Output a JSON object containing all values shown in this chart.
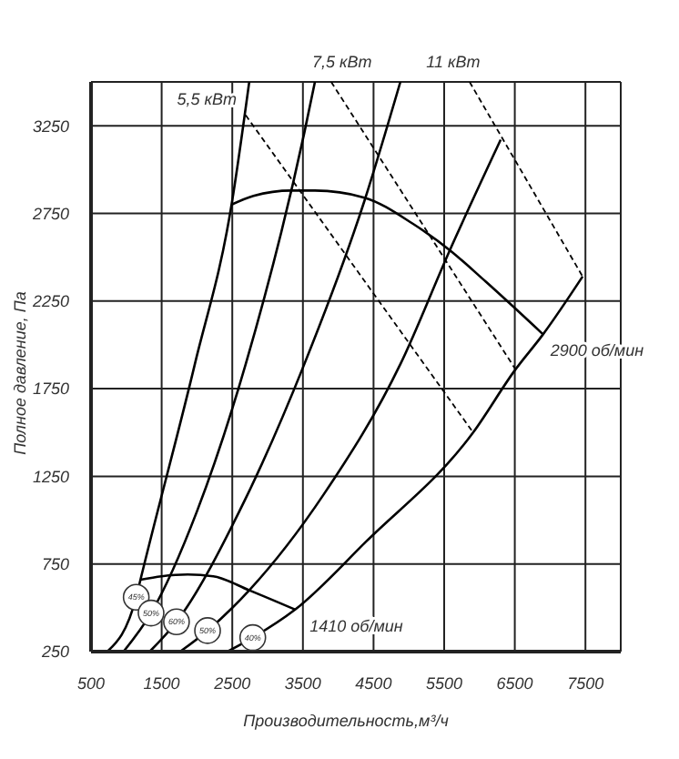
{
  "chart_data": {
    "type": "line",
    "xlabel": "Производительность,м³/ч",
    "ylabel": "Полное давление, Па",
    "xlim": [
      500,
      8000
    ],
    "xticks": [
      500,
      1500,
      2500,
      3500,
      4500,
      5500,
      6500,
      7500
    ],
    "ylim": [
      250,
      3500
    ],
    "yticks": [
      250,
      750,
      1250,
      1750,
      2250,
      2750,
      3250
    ],
    "grid": true,
    "marker": "none",
    "series": [
      {
        "color": "#000000",
        "x": [
          2490,
          2800,
          3340,
          3670,
          4370,
          5060,
          5580,
          6090,
          6900
        ],
        "values": [
          2800,
          2850,
          2880,
          2880,
          2840,
          2690,
          2540,
          2360,
          2060
        ]
      },
      {
        "color": "#000000",
        "x": [
          1200,
          1500,
          1870,
          2230,
          2740,
          3390
        ],
        "values": [
          660,
          680,
          690,
          680,
          600,
          490
        ]
      },
      {
        "color": "#000000",
        "x": [
          730,
          1140,
          1200,
          1970,
          2490,
          2740
        ],
        "values": [
          250,
          560,
          660,
          1890,
          2800,
          3500
        ]
      },
      {
        "color": "#000000",
        "x": [
          960,
          1350,
          2000,
          2690,
          3520,
          3670
        ],
        "values": [
          250,
          470,
          1050,
          1890,
          3210,
          3500
        ]
      },
      {
        "color": "#000000",
        "x": [
          1330,
          1710,
          2600,
          3520,
          4370,
          4880
        ],
        "values": [
          250,
          420,
          1050,
          1890,
          2820,
          3500
        ]
      },
      {
        "color": "#000000",
        "x": [
          1760,
          2150,
          2740,
          3800,
          4880,
          5580,
          6300
        ],
        "values": [
          250,
          370,
          600,
          1150,
          1890,
          2540,
          3170
        ]
      },
      {
        "color": "#000000",
        "x": [
          2430,
          2790,
          3390,
          4400,
          5910,
          6510,
          6900,
          7460
        ],
        "values": [
          250,
          330,
          490,
          880,
          1500,
          1860,
          2060,
          2390
        ]
      },
      {
        "color": "#000000",
        "line_style": "dashed",
        "x": [
          2690,
          5910
        ],
        "values": [
          3310,
          1500
        ]
      },
      {
        "color": "#000000",
        "line_style": "dashed",
        "x": [
          3900,
          6510
        ],
        "values": [
          3500,
          1860
        ]
      },
      {
        "color": "#000000",
        "line_style": "dashed",
        "x": [
          5860,
          7460
        ],
        "values": [
          3500,
          2390
        ]
      }
    ],
    "annotations": [
      {
        "text": "5,5 кВт",
        "x": 2690,
        "y": 3310
      },
      {
        "text": "7,5 кВт",
        "x": 3900,
        "y": 3500
      },
      {
        "text": "11 кВт",
        "x": 5860,
        "y": 3500
      },
      {
        "text": "2900 об/мин",
        "x": 6900,
        "y": 2060
      },
      {
        "text": "1410 об/мин",
        "x": 3390,
        "y": 490
      },
      {
        "text": "45%",
        "x": 1140,
        "y": 560
      },
      {
        "text": "50%",
        "x": 1350,
        "y": 470
      },
      {
        "text": "60%",
        "x": 1710,
        "y": 420
      },
      {
        "text": "50%",
        "x": 2150,
        "y": 370
      },
      {
        "text": "40%",
        "x": 2790,
        "y": 330
      }
    ]
  }
}
